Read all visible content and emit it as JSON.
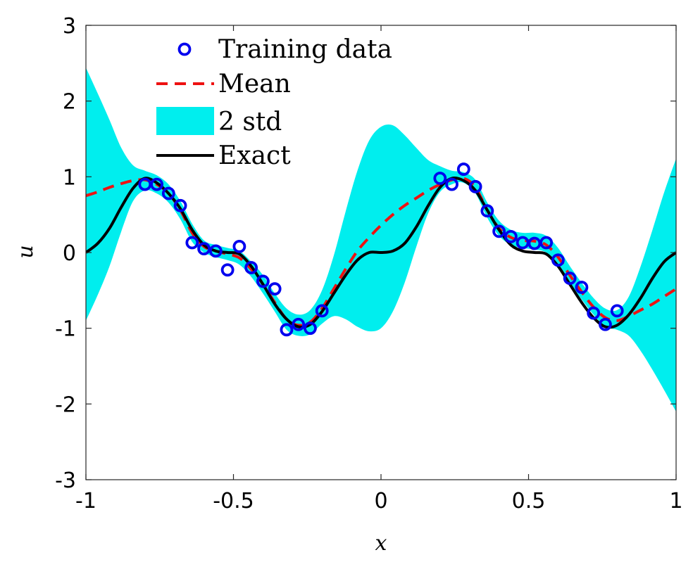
{
  "chart_data": {
    "type": "line",
    "title": "",
    "xlabel": "x",
    "ylabel": "u",
    "xlim": [
      -1,
      1
    ],
    "ylim": [
      -3,
      3
    ],
    "grid": false,
    "xticks": [
      -1,
      -0.5,
      0,
      0.5,
      1
    ],
    "xtick_labels": [
      "-1",
      "-0.5",
      "0",
      "0.5",
      "1"
    ],
    "yticks": [
      -3,
      -2,
      -1,
      0,
      1,
      2,
      3
    ],
    "ytick_labels": [
      "-3",
      "-2",
      "-1",
      "0",
      "1",
      "2",
      "3"
    ],
    "legend_position": "top-left",
    "legend": [
      "Training  data",
      "Mean",
      "2  std",
      "Exact"
    ],
    "colors": {
      "training": "#0000ee",
      "mean": "#ee1111",
      "band": "#00eeee",
      "exact": "#000000"
    },
    "series": [
      {
        "name": "Training  data",
        "style": "markers",
        "points": [
          [
            -0.8,
            0.9
          ],
          [
            -0.76,
            0.9
          ],
          [
            -0.72,
            0.78
          ],
          [
            -0.68,
            0.62
          ],
          [
            -0.64,
            0.13
          ],
          [
            -0.6,
            0.05
          ],
          [
            -0.56,
            0.02
          ],
          [
            -0.52,
            -0.23
          ],
          [
            -0.48,
            0.08
          ],
          [
            -0.44,
            -0.2
          ],
          [
            -0.4,
            -0.38
          ],
          [
            -0.36,
            -0.48
          ],
          [
            -0.32,
            -1.02
          ],
          [
            -0.28,
            -0.95
          ],
          [
            -0.24,
            -1.0
          ],
          [
            -0.2,
            -0.77
          ],
          [
            0.2,
            0.98
          ],
          [
            0.24,
            0.9
          ],
          [
            0.28,
            1.1
          ],
          [
            0.32,
            0.87
          ],
          [
            0.36,
            0.55
          ],
          [
            0.4,
            0.28
          ],
          [
            0.44,
            0.21
          ],
          [
            0.48,
            0.13
          ],
          [
            0.52,
            0.12
          ],
          [
            0.56,
            0.13
          ],
          [
            0.6,
            -0.1
          ],
          [
            0.64,
            -0.34
          ],
          [
            0.68,
            -0.46
          ],
          [
            0.72,
            -0.8
          ],
          [
            0.76,
            -0.95
          ],
          [
            0.8,
            -0.77
          ]
        ]
      },
      {
        "name": "Mean",
        "style": "dashed",
        "x": [
          -1,
          -0.96,
          -0.92,
          -0.88,
          -0.84,
          -0.8,
          -0.76,
          -0.72,
          -0.68,
          -0.64,
          -0.6,
          -0.56,
          -0.52,
          -0.48,
          -0.44,
          -0.4,
          -0.36,
          -0.32,
          -0.28,
          -0.24,
          -0.2,
          -0.16,
          -0.12,
          -0.08,
          -0.04,
          0,
          0.04,
          0.08,
          0.12,
          0.16,
          0.2,
          0.24,
          0.28,
          0.32,
          0.36,
          0.4,
          0.44,
          0.48,
          0.52,
          0.56,
          0.6,
          0.64,
          0.68,
          0.72,
          0.76,
          0.8,
          0.84,
          0.88,
          0.92,
          0.96,
          1
        ],
        "y": [
          0.75,
          0.8,
          0.86,
          0.91,
          0.95,
          0.96,
          0.9,
          0.78,
          0.56,
          0.26,
          0.08,
          0.02,
          -0.02,
          -0.07,
          -0.22,
          -0.42,
          -0.66,
          -0.88,
          -0.96,
          -0.92,
          -0.74,
          -0.48,
          -0.22,
          0.02,
          0.2,
          0.36,
          0.5,
          0.62,
          0.72,
          0.82,
          0.9,
          0.96,
          0.98,
          0.86,
          0.56,
          0.32,
          0.2,
          0.16,
          0.15,
          0.1,
          -0.06,
          -0.3,
          -0.52,
          -0.72,
          -0.86,
          -0.9,
          -0.84,
          -0.76,
          -0.68,
          -0.58,
          -0.48
        ]
      },
      {
        "name": "2  std",
        "style": "band",
        "x": [
          -1,
          -0.96,
          -0.92,
          -0.88,
          -0.84,
          -0.8,
          -0.76,
          -0.72,
          -0.68,
          -0.64,
          -0.6,
          -0.56,
          -0.52,
          -0.48,
          -0.44,
          -0.4,
          -0.36,
          -0.32,
          -0.28,
          -0.24,
          -0.2,
          -0.16,
          -0.12,
          -0.08,
          -0.04,
          0,
          0.04,
          0.08,
          0.12,
          0.16,
          0.2,
          0.24,
          0.28,
          0.32,
          0.36,
          0.4,
          0.44,
          0.48,
          0.52,
          0.56,
          0.6,
          0.64,
          0.68,
          0.72,
          0.76,
          0.8,
          0.84,
          0.88,
          0.92,
          0.96,
          1
        ],
        "lower": [
          -0.9,
          -0.56,
          -0.18,
          0.28,
          0.68,
          0.82,
          0.78,
          0.66,
          0.44,
          0.14,
          0.0,
          -0.06,
          -0.1,
          -0.16,
          -0.32,
          -0.54,
          -0.78,
          -1.02,
          -1.1,
          -1.08,
          -0.94,
          -0.84,
          -0.88,
          -0.98,
          -1.04,
          -1.0,
          -0.78,
          -0.4,
          0.08,
          0.52,
          0.8,
          0.9,
          0.92,
          0.78,
          0.46,
          0.22,
          0.1,
          0.06,
          0.04,
          0.0,
          -0.16,
          -0.4,
          -0.62,
          -0.82,
          -0.98,
          -1.02,
          -1.1,
          -1.3,
          -1.55,
          -1.82,
          -2.1
        ],
        "upper": [
          2.44,
          2.1,
          1.75,
          1.38,
          1.15,
          1.08,
          1.02,
          0.9,
          0.68,
          0.38,
          0.16,
          0.1,
          0.06,
          0.02,
          -0.12,
          -0.3,
          -0.54,
          -0.74,
          -0.82,
          -0.76,
          -0.5,
          -0.04,
          0.54,
          1.08,
          1.48,
          1.66,
          1.68,
          1.55,
          1.38,
          1.22,
          1.14,
          1.08,
          1.06,
          0.96,
          0.66,
          0.42,
          0.3,
          0.26,
          0.26,
          0.22,
          0.06,
          -0.18,
          -0.4,
          -0.6,
          -0.74,
          -0.76,
          -0.58,
          -0.18,
          0.3,
          0.8,
          1.24
        ]
      },
      {
        "name": "Exact",
        "style": "solid",
        "x": [
          -1,
          -0.96,
          -0.92,
          -0.88,
          -0.84,
          -0.8,
          -0.76,
          -0.72,
          -0.68,
          -0.64,
          -0.6,
          -0.56,
          -0.52,
          -0.48,
          -0.44,
          -0.4,
          -0.36,
          -0.32,
          -0.28,
          -0.24,
          -0.2,
          -0.16,
          -0.12,
          -0.08,
          -0.04,
          0,
          0.04,
          0.08,
          0.12,
          0.16,
          0.2,
          0.24,
          0.28,
          0.32,
          0.36,
          0.4,
          0.44,
          0.48,
          0.52,
          0.56,
          0.6,
          0.64,
          0.68,
          0.72,
          0.76,
          0.8,
          0.84,
          0.88,
          0.92,
          0.96,
          1
        ],
        "y": [
          0.0,
          0.12,
          0.32,
          0.6,
          0.85,
          0.98,
          0.92,
          0.78,
          0.58,
          0.3,
          0.1,
          0.02,
          0.0,
          -0.02,
          -0.18,
          -0.42,
          -0.68,
          -0.88,
          -0.98,
          -0.95,
          -0.78,
          -0.54,
          -0.3,
          -0.1,
          0.0,
          0.0,
          0.02,
          0.12,
          0.34,
          0.62,
          0.86,
          0.98,
          0.95,
          0.82,
          0.56,
          0.3,
          0.1,
          0.02,
          0.0,
          -0.02,
          -0.18,
          -0.42,
          -0.66,
          -0.86,
          -0.98,
          -0.96,
          -0.82,
          -0.6,
          -0.34,
          -0.12,
          0.0
        ]
      }
    ]
  }
}
